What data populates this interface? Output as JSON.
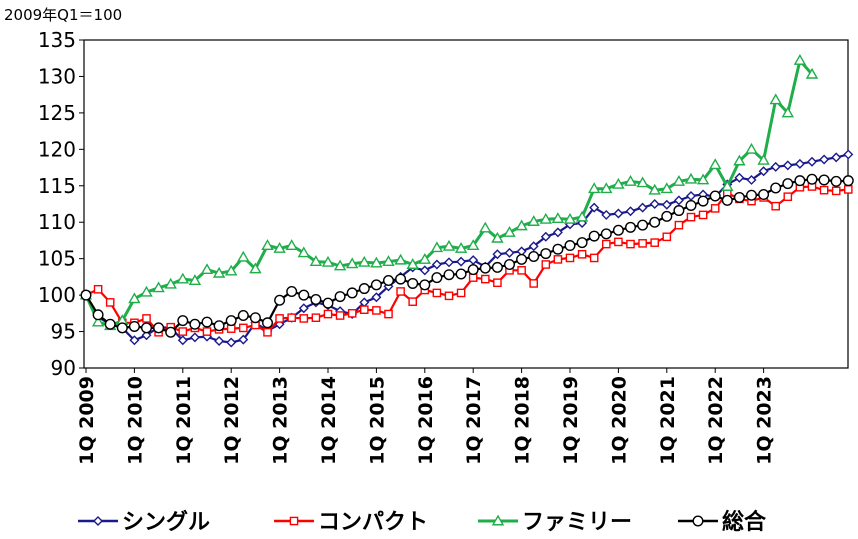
{
  "chart_data": {
    "type": "line",
    "unit_label": "2009年Q1＝100",
    "ylim": [
      90,
      135
    ],
    "yticks": [
      "90",
      "95",
      "100",
      "105",
      "110",
      "115",
      "120",
      "125",
      "130",
      "135"
    ],
    "x_tick_labels": [
      "1Q 2009",
      "1Q 2010",
      "1Q 2011",
      "1Q 2012",
      "1Q 2013",
      "1Q 2014",
      "1Q 2015",
      "1Q 2016",
      "1Q 2017",
      "1Q 2018",
      "1Q 2019",
      "1Q 2020",
      "1Q 2021",
      "1Q 2022",
      "1Q 2023"
    ],
    "grid": false,
    "legend_position": "bottom",
    "series": [
      {
        "name": "シングル",
        "color": "#1a1a8c",
        "marker": "diamond",
        "values": [
          100.0,
          97.0,
          96.0,
          95.5,
          93.8,
          94.5,
          95.6,
          95.5,
          93.8,
          94.2,
          94.3,
          93.7,
          93.5,
          93.9,
          96.2,
          95.1,
          96.0,
          96.9,
          98.2,
          99.0,
          98.6,
          97.8,
          97.4,
          99.0,
          99.7,
          101.2,
          102.5,
          103.8,
          103.4,
          104.2,
          104.5,
          104.6,
          104.8,
          103.9,
          105.6,
          105.8,
          106.0,
          106.7,
          108.0,
          108.6,
          109.7,
          109.9,
          112.0,
          111.0,
          111.2,
          111.5,
          112.0,
          112.5,
          112.4,
          113.0,
          113.6,
          113.8,
          113.5,
          115.2,
          116.1,
          115.8,
          117.0,
          117.6,
          117.8,
          118.0,
          118.3,
          118.6,
          118.9,
          119.3
        ]
      },
      {
        "name": "コンパクト",
        "color": "#ff0000",
        "marker": "square",
        "values": [
          100.0,
          100.8,
          99.0,
          96.2,
          96.2,
          96.8,
          94.9,
          95.6,
          95.0,
          95.5,
          95.0,
          95.3,
          95.4,
          95.5,
          95.9,
          94.9,
          96.8,
          96.9,
          96.8,
          96.9,
          97.4,
          97.2,
          97.5,
          98.0,
          97.9,
          97.4,
          100.5,
          99.1,
          100.7,
          100.3,
          99.9,
          100.3,
          102.4,
          102.2,
          101.7,
          103.4,
          103.4,
          101.6,
          104.2,
          104.9,
          105.1,
          105.6,
          105.1,
          107.0,
          107.3,
          107.0,
          107.1,
          107.2,
          108.0,
          109.6,
          110.7,
          111.0,
          111.9,
          114.0,
          113.2,
          112.9,
          113.4,
          112.2,
          113.5,
          114.8,
          114.9,
          114.4,
          114.3,
          114.5
        ]
      },
      {
        "name": "ファミリー",
        "color": "#1fae4a",
        "marker": "triangle",
        "values": [
          100.0,
          96.3,
          95.8,
          96.5,
          99.5,
          100.4,
          101.0,
          101.5,
          102.2,
          102.0,
          103.5,
          103.0,
          103.3,
          105.2,
          103.6,
          106.8,
          106.4,
          106.8,
          105.8,
          104.6,
          104.5,
          104.0,
          104.3,
          104.5,
          104.4,
          104.6,
          104.8,
          104.2,
          104.9,
          106.5,
          106.7,
          106.4,
          106.8,
          109.2,
          107.8,
          108.6,
          109.5,
          110.1,
          110.4,
          110.5,
          110.4,
          110.7,
          114.6,
          114.6,
          115.2,
          115.6,
          115.4,
          114.4,
          114.6,
          115.6,
          115.9,
          115.8,
          117.9,
          114.9,
          118.4,
          120.0,
          118.5,
          126.8,
          125.0,
          132.2,
          130.3
        ]
      },
      {
        "name": "総合",
        "color": "#000000",
        "marker": "circle",
        "values": [
          100.0,
          97.3,
          96.0,
          95.5,
          95.7,
          95.5,
          95.5,
          94.9,
          96.5,
          96.0,
          96.3,
          95.8,
          96.5,
          97.2,
          96.9,
          96.2,
          99.3,
          100.5,
          100.0,
          99.4,
          98.9,
          99.8,
          100.3,
          100.9,
          101.4,
          102.0,
          102.2,
          101.6,
          101.4,
          102.4,
          102.8,
          102.9,
          103.5,
          103.7,
          103.8,
          104.2,
          104.9,
          105.3,
          105.7,
          106.3,
          106.8,
          107.2,
          108.1,
          108.4,
          108.9,
          109.3,
          109.6,
          110.0,
          110.8,
          111.6,
          112.3,
          112.9,
          113.6,
          113.0,
          113.4,
          113.7,
          113.8,
          114.7,
          115.3,
          115.7,
          115.9,
          115.8,
          115.6,
          115.7
        ]
      }
    ]
  }
}
